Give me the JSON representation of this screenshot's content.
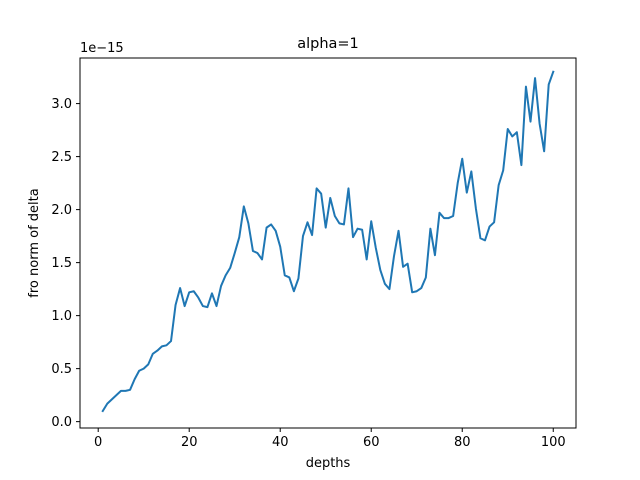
{
  "chart_data": {
    "type": "line",
    "title": "alpha=1",
    "xlabel": "depths",
    "ylabel": "fro norm of delta",
    "offset_text": "1e−15",
    "xlim": [
      -4,
      105
    ],
    "ylim": [
      -0.06,
      3.43
    ],
    "x_ticks": [
      0,
      20,
      40,
      60,
      80,
      100
    ],
    "x_tick_labels": [
      "0",
      "20",
      "40",
      "60",
      "80",
      "100"
    ],
    "y_ticks": [
      0.0,
      0.5,
      1.0,
      1.5,
      2.0,
      2.5,
      3.0
    ],
    "y_tick_labels": [
      "0.0",
      "0.5",
      "1.0",
      "1.5",
      "2.0",
      "2.5",
      "3.0"
    ],
    "grid": false,
    "series": [
      {
        "color": "#1f77b4",
        "x": [
          1,
          2,
          3,
          4,
          5,
          6,
          7,
          8,
          9,
          10,
          11,
          12,
          13,
          14,
          15,
          16,
          17,
          18,
          19,
          20,
          21,
          22,
          23,
          24,
          25,
          26,
          27,
          28,
          29,
          30,
          31,
          32,
          33,
          34,
          35,
          36,
          37,
          38,
          39,
          40,
          41,
          42,
          43,
          44,
          45,
          46,
          47,
          48,
          49,
          50,
          51,
          52,
          53,
          54,
          55,
          56,
          57,
          58,
          59,
          60,
          61,
          62,
          63,
          64,
          65,
          66,
          67,
          68,
          69,
          70,
          71,
          72,
          73,
          74,
          75,
          76,
          77,
          78,
          79,
          80,
          81,
          82,
          83,
          84,
          85,
          86,
          87,
          88,
          89,
          90,
          91,
          92,
          93,
          94,
          95,
          96,
          97,
          98,
          99,
          100
        ],
        "values": [
          0.1,
          0.17,
          0.21,
          0.25,
          0.29,
          0.29,
          0.3,
          0.4,
          0.48,
          0.5,
          0.54,
          0.64,
          0.67,
          0.71,
          0.72,
          0.76,
          1.1,
          1.26,
          1.09,
          1.22,
          1.23,
          1.17,
          1.09,
          1.08,
          1.21,
          1.09,
          1.28,
          1.38,
          1.45,
          1.59,
          1.74,
          2.03,
          1.87,
          1.61,
          1.59,
          1.53,
          1.83,
          1.86,
          1.8,
          1.65,
          1.38,
          1.36,
          1.23,
          1.35,
          1.75,
          1.88,
          1.76,
          2.2,
          2.15,
          1.83,
          2.11,
          1.94,
          1.87,
          1.86,
          2.2,
          1.74,
          1.82,
          1.81,
          1.53,
          1.89,
          1.64,
          1.43,
          1.3,
          1.25,
          1.56,
          1.8,
          1.46,
          1.49,
          1.22,
          1.23,
          1.26,
          1.36,
          1.82,
          1.57,
          1.97,
          1.92,
          1.92,
          1.94,
          2.25,
          2.48,
          2.16,
          2.36,
          2.01,
          1.73,
          1.71,
          1.84,
          1.88,
          2.23,
          2.37,
          2.76,
          2.69,
          2.73,
          2.42,
          3.16,
          2.83,
          3.24,
          2.81,
          2.55,
          3.18,
          3.3
        ]
      }
    ]
  }
}
